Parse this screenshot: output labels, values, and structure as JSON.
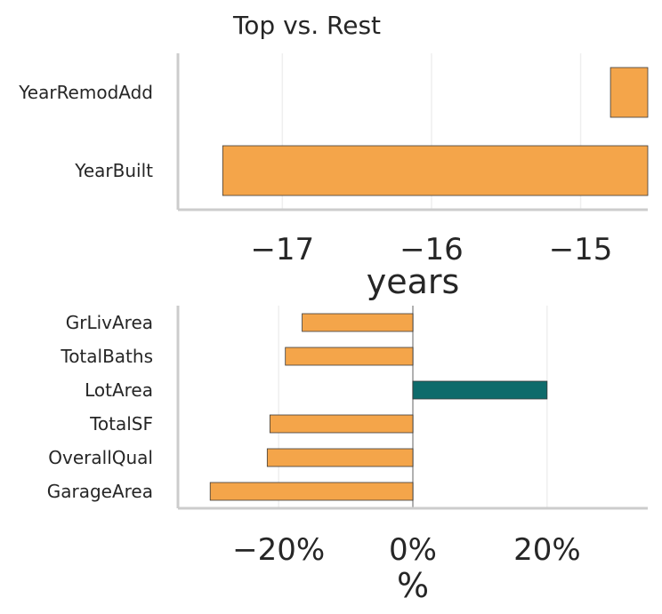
{
  "title": "Top vs. Rest",
  "colors": {
    "negative": "#F4A54A",
    "positive": "#0E6B6B"
  },
  "chart_data": [
    {
      "type": "bar",
      "orientation": "horizontal",
      "categories": [
        "YearRemodAdd",
        "YearBuilt"
      ],
      "values": [
        -14.8,
        -17.4
      ],
      "xlabel": "years",
      "xlim": [
        -17.7,
        -14.55
      ],
      "xticks": [
        -17,
        -16,
        -15
      ],
      "xtick_labels": [
        "−17",
        "−16",
        "−15"
      ],
      "grid": true
    },
    {
      "type": "bar",
      "orientation": "horizontal",
      "categories": [
        "GrLivArea",
        "TotalBaths",
        "LotArea",
        "TotalSF",
        "OverallQual",
        "GarageArea"
      ],
      "values": [
        -16.5,
        -19.0,
        20.0,
        -21.3,
        -21.7,
        -30.2
      ],
      "xlabel": "%",
      "xlim": [
        -35,
        35
      ],
      "xticks": [
        -20,
        0,
        20
      ],
      "xtick_labels": [
        "−20%",
        "0%",
        "20%"
      ],
      "grid": true
    }
  ]
}
